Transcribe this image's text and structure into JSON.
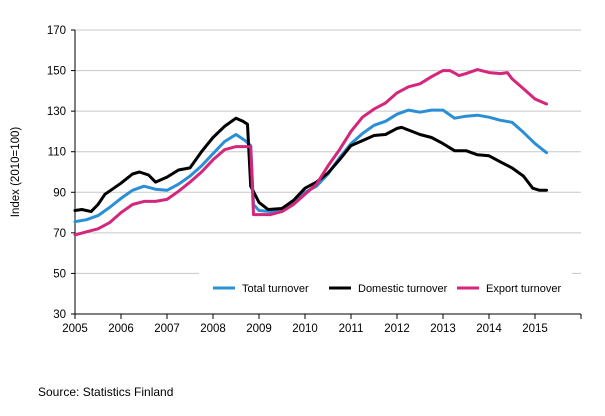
{
  "chart_data": {
    "type": "line",
    "title": "",
    "xlabel": "",
    "ylabel": "Index (2010=100)",
    "ylim": [
      30,
      170
    ],
    "xlim": [
      2005,
      2016
    ],
    "yticks": [
      30,
      50,
      70,
      90,
      110,
      130,
      150,
      170
    ],
    "xticks": [
      2005,
      2006,
      2007,
      2008,
      2009,
      2010,
      2011,
      2012,
      2013,
      2014,
      2015
    ],
    "xtick_labels": [
      "2005",
      "2006",
      "2007",
      "2008",
      "2009",
      "2010",
      "2011",
      "2012",
      "2013",
      "2014",
      "2015"
    ],
    "grid": "horizontal",
    "legend_position": "bottom-right",
    "source": "Source: Statistics Finland",
    "series": [
      {
        "name": "Total turnover",
        "color": "#2a8fd4",
        "points": [
          [
            2005.0,
            75.5
          ],
          [
            2005.25,
            76.5
          ],
          [
            2005.5,
            78.5
          ],
          [
            2005.75,
            82.5
          ],
          [
            2006.0,
            87
          ],
          [
            2006.25,
            91
          ],
          [
            2006.5,
            93
          ],
          [
            2006.75,
            91.5
          ],
          [
            2007.0,
            91
          ],
          [
            2007.25,
            94
          ],
          [
            2007.5,
            98
          ],
          [
            2007.75,
            103
          ],
          [
            2008.0,
            109
          ],
          [
            2008.25,
            115
          ],
          [
            2008.5,
            118.5
          ],
          [
            2008.7,
            115.5
          ],
          [
            2008.82,
            113
          ],
          [
            2008.88,
            84
          ],
          [
            2009.0,
            81
          ],
          [
            2009.25,
            80.5
          ],
          [
            2009.5,
            82
          ],
          [
            2009.75,
            85
          ],
          [
            2010.0,
            90
          ],
          [
            2010.25,
            93
          ],
          [
            2010.5,
            99
          ],
          [
            2010.75,
            107
          ],
          [
            2011.0,
            114
          ],
          [
            2011.25,
            119
          ],
          [
            2011.5,
            123
          ],
          [
            2011.75,
            125
          ],
          [
            2012.0,
            128.5
          ],
          [
            2012.25,
            130.5
          ],
          [
            2012.5,
            129.5
          ],
          [
            2012.75,
            130.5
          ],
          [
            2013.0,
            130.5
          ],
          [
            2013.25,
            126.5
          ],
          [
            2013.5,
            127.5
          ],
          [
            2013.75,
            128
          ],
          [
            2014.0,
            127
          ],
          [
            2014.25,
            125.5
          ],
          [
            2014.5,
            124.5
          ],
          [
            2014.75,
            119.5
          ],
          [
            2015.0,
            114
          ],
          [
            2015.25,
            109.5
          ]
        ]
      },
      {
        "name": "Domestic turnover",
        "color": "#000000",
        "points": [
          [
            2005.0,
            81
          ],
          [
            2005.15,
            81.5
          ],
          [
            2005.35,
            80.5
          ],
          [
            2005.5,
            84
          ],
          [
            2005.65,
            89
          ],
          [
            2006.0,
            94.5
          ],
          [
            2006.25,
            99
          ],
          [
            2006.4,
            100
          ],
          [
            2006.6,
            98.5
          ],
          [
            2006.75,
            95
          ],
          [
            2007.0,
            97.5
          ],
          [
            2007.25,
            101
          ],
          [
            2007.5,
            102
          ],
          [
            2007.75,
            110
          ],
          [
            2008.0,
            117
          ],
          [
            2008.25,
            122.5
          ],
          [
            2008.5,
            126.5
          ],
          [
            2008.65,
            125
          ],
          [
            2008.75,
            123.5
          ],
          [
            2008.82,
            93
          ],
          [
            2009.0,
            85
          ],
          [
            2009.2,
            81.5
          ],
          [
            2009.5,
            82
          ],
          [
            2009.75,
            86
          ],
          [
            2010.0,
            92
          ],
          [
            2010.25,
            95
          ],
          [
            2010.5,
            99.5
          ],
          [
            2010.75,
            106
          ],
          [
            2011.0,
            113
          ],
          [
            2011.25,
            115.5
          ],
          [
            2011.5,
            118
          ],
          [
            2011.75,
            118.5
          ],
          [
            2012.0,
            121.5
          ],
          [
            2012.1,
            122
          ],
          [
            2012.5,
            118.5
          ],
          [
            2012.75,
            117
          ],
          [
            2013.0,
            114
          ],
          [
            2013.25,
            110.5
          ],
          [
            2013.5,
            110.5
          ],
          [
            2013.75,
            108.5
          ],
          [
            2014.0,
            108
          ],
          [
            2014.25,
            105
          ],
          [
            2014.5,
            102
          ],
          [
            2014.75,
            98
          ],
          [
            2014.95,
            92
          ],
          [
            2015.1,
            91
          ],
          [
            2015.25,
            91
          ]
        ]
      },
      {
        "name": "Export turnover",
        "color": "#d4267b",
        "points": [
          [
            2005.0,
            69
          ],
          [
            2005.25,
            70.5
          ],
          [
            2005.5,
            72
          ],
          [
            2005.75,
            75
          ],
          [
            2006.0,
            80
          ],
          [
            2006.25,
            84
          ],
          [
            2006.5,
            85.5
          ],
          [
            2006.75,
            85.5
          ],
          [
            2007.0,
            86.5
          ],
          [
            2007.25,
            90.5
          ],
          [
            2007.5,
            95
          ],
          [
            2007.75,
            100
          ],
          [
            2008.0,
            106
          ],
          [
            2008.25,
            111
          ],
          [
            2008.5,
            112.5
          ],
          [
            2008.75,
            112.5
          ],
          [
            2008.82,
            112.5
          ],
          [
            2008.88,
            79
          ],
          [
            2009.0,
            79
          ],
          [
            2009.25,
            79
          ],
          [
            2009.5,
            80.5
          ],
          [
            2009.75,
            84
          ],
          [
            2010.0,
            89
          ],
          [
            2010.25,
            94
          ],
          [
            2010.5,
            103
          ],
          [
            2010.75,
            111
          ],
          [
            2011.0,
            120
          ],
          [
            2011.25,
            127
          ],
          [
            2011.5,
            131
          ],
          [
            2011.75,
            134
          ],
          [
            2012.0,
            139
          ],
          [
            2012.25,
            142
          ],
          [
            2012.5,
            143.5
          ],
          [
            2012.75,
            147
          ],
          [
            2013.0,
            150
          ],
          [
            2013.15,
            150
          ],
          [
            2013.35,
            147.5
          ],
          [
            2013.5,
            148.5
          ],
          [
            2013.75,
            150.5
          ],
          [
            2014.0,
            149
          ],
          [
            2014.25,
            148.5
          ],
          [
            2014.4,
            149
          ],
          [
            2014.5,
            146
          ],
          [
            2014.75,
            141
          ],
          [
            2015.0,
            136
          ],
          [
            2015.25,
            133.5
          ]
        ]
      }
    ]
  }
}
